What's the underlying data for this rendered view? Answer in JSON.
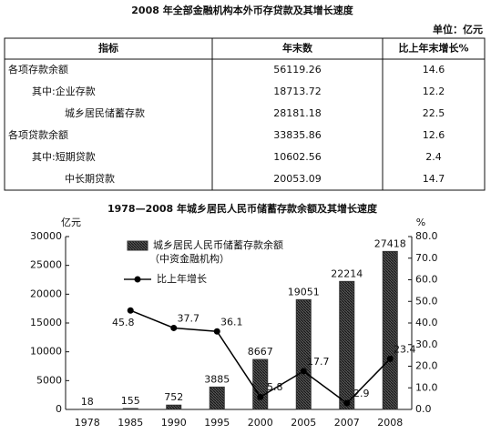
{
  "table": {
    "title": "2008 年全部金融机构本外币存贷款及其增长速度",
    "unit": "单位：亿元",
    "header": [
      "指标",
      "年末数",
      "比上年末增长%"
    ],
    "rows": [
      [
        "各项存款余额",
        "56119.26",
        "14.6"
      ],
      [
        "其中:企业存款",
        "18713.72",
        "12.2"
      ],
      [
        "城乡居民储蓄存款",
        "28181.18",
        "22.5"
      ],
      [
        "各项贷款余额",
        "33835.86",
        "12.6"
      ],
      [
        "其中:短期贷款",
        "10602.56",
        "2.4"
      ],
      [
        "中长期贷款",
        "20053.09",
        "14.7"
      ]
    ]
  },
  "chart_data": {
    "type": "bar-line",
    "title": "1978—2008 年城乡居民人民币储蓄存款余额及其增长速度",
    "y_label": "亿元",
    "y2_label": "%",
    "categories": [
      "1978",
      "1985",
      "1990",
      "1995",
      "2000",
      "2005",
      "2007",
      "2008"
    ],
    "series": [
      {
        "name": "城乡居民人民币储蓄存款余额",
        "note": "（中资金融机构）",
        "type": "bar",
        "color": "#333333",
        "values": [
          18,
          155,
          752,
          3885,
          8667,
          19051,
          22214,
          27418
        ]
      },
      {
        "name": "比上年增长",
        "type": "line",
        "axis": "y2",
        "color": "#000000",
        "values": [
          null,
          45.8,
          37.7,
          36.1,
          5.8,
          17.7,
          2.9,
          23.4
        ]
      }
    ],
    "ylim": [
      0,
      30000
    ],
    "yticks": [
      0,
      5000,
      10000,
      15000,
      20000,
      25000,
      30000
    ],
    "y2lim": [
      0,
      80
    ],
    "y2ticks": [
      {
        "value": 0,
        "label": "0.0"
      },
      {
        "value": 10,
        "label": "10.0"
      },
      {
        "value": 20,
        "label": "20.0"
      },
      {
        "value": 30,
        "label": "30.0"
      },
      {
        "value": 40,
        "label": "40.0"
      },
      {
        "value": 50,
        "label": "50.0"
      },
      {
        "value": 60,
        "label": "60.0"
      },
      {
        "value": 70,
        "label": "70.0"
      },
      {
        "value": 80,
        "label": "80.0"
      }
    ]
  }
}
